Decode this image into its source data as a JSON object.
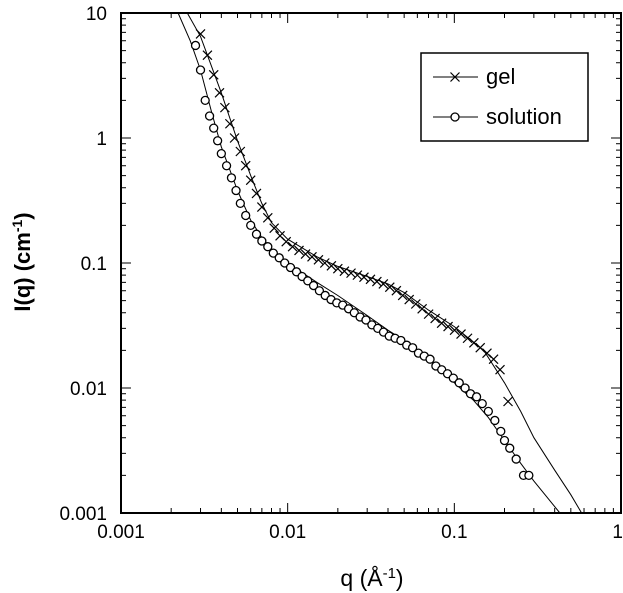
{
  "chart_data": {
    "type": "scatter",
    "xscale": "log",
    "yscale": "log",
    "xlim": [
      0.001,
      1
    ],
    "ylim": [
      0.001,
      10
    ],
    "xticks": [
      0.001,
      0.01,
      0.1,
      1
    ],
    "xtick_labels": [
      "0.001",
      "0.01",
      "0.1",
      "1"
    ],
    "yticks": [
      0.001,
      0.01,
      0.1,
      1,
      10
    ],
    "ytick_labels": [
      "0.001",
      "0.01",
      "0.1",
      "1",
      "10"
    ],
    "xlabel": {
      "text": "q  (Å",
      "sup": "-1",
      "close": ")"
    },
    "ylabel": {
      "text": "I(q)  (cm",
      "sup": "-1",
      "close": ")"
    },
    "grid": false,
    "legend_position": "top-right",
    "series": [
      {
        "name": "gel",
        "marker": "x",
        "points": [
          [
            0.003,
            6.8
          ],
          [
            0.0033,
            4.6
          ],
          [
            0.0036,
            3.2
          ],
          [
            0.0039,
            2.3
          ],
          [
            0.0042,
            1.75
          ],
          [
            0.0045,
            1.3
          ],
          [
            0.0048,
            1.0
          ],
          [
            0.0052,
            0.78
          ],
          [
            0.0056,
            0.6
          ],
          [
            0.006,
            0.46
          ],
          [
            0.0065,
            0.36
          ],
          [
            0.007,
            0.28
          ],
          [
            0.0076,
            0.23
          ],
          [
            0.0083,
            0.19
          ],
          [
            0.009,
            0.165
          ],
          [
            0.0098,
            0.148
          ],
          [
            0.0107,
            0.135
          ],
          [
            0.0117,
            0.126
          ],
          [
            0.0128,
            0.118
          ],
          [
            0.014,
            0.112
          ],
          [
            0.0153,
            0.106
          ],
          [
            0.0167,
            0.1
          ],
          [
            0.0183,
            0.095
          ],
          [
            0.02,
            0.09
          ],
          [
            0.0219,
            0.086
          ],
          [
            0.024,
            0.083
          ],
          [
            0.0262,
            0.08
          ],
          [
            0.0287,
            0.077
          ],
          [
            0.0314,
            0.074
          ],
          [
            0.0343,
            0.071
          ],
          [
            0.0375,
            0.068
          ],
          [
            0.041,
            0.064
          ],
          [
            0.0449,
            0.06
          ],
          [
            0.049,
            0.055
          ],
          [
            0.0536,
            0.051
          ],
          [
            0.0587,
            0.047
          ],
          [
            0.0641,
            0.043
          ],
          [
            0.0701,
            0.039
          ],
          [
            0.0767,
            0.036
          ],
          [
            0.0839,
            0.033
          ],
          [
            0.0917,
            0.031
          ],
          [
            0.1003,
            0.029
          ],
          [
            0.1097,
            0.027
          ],
          [
            0.12,
            0.025
          ],
          [
            0.131,
            0.023
          ],
          [
            0.143,
            0.021
          ],
          [
            0.157,
            0.019
          ],
          [
            0.172,
            0.017
          ],
          [
            0.188,
            0.014
          ],
          [
            0.21,
            0.0078
          ]
        ],
        "fit": [
          [
            0.0025,
            10
          ],
          [
            0.003,
            6.5
          ],
          [
            0.004,
            2.3
          ],
          [
            0.005,
            0.95
          ],
          [
            0.006,
            0.5
          ],
          [
            0.007,
            0.3
          ],
          [
            0.008,
            0.21
          ],
          [
            0.01,
            0.155
          ],
          [
            0.015,
            0.112
          ],
          [
            0.02,
            0.094
          ],
          [
            0.03,
            0.078
          ],
          [
            0.04,
            0.068
          ],
          [
            0.05,
            0.058
          ],
          [
            0.07,
            0.042
          ],
          [
            0.1,
            0.031
          ],
          [
            0.15,
            0.02
          ],
          [
            0.2,
            0.011
          ],
          [
            0.25,
            0.0065
          ],
          [
            0.3,
            0.004
          ],
          [
            0.4,
            0.0022
          ],
          [
            0.5,
            0.0014
          ],
          [
            0.58,
            0.001
          ]
        ]
      },
      {
        "name": "solution",
        "marker": "o",
        "points": [
          [
            0.0028,
            5.5
          ],
          [
            0.003,
            3.5
          ],
          [
            0.0032,
            2.0
          ],
          [
            0.0034,
            1.5
          ],
          [
            0.0036,
            1.2
          ],
          [
            0.0038,
            0.95
          ],
          [
            0.004,
            0.75
          ],
          [
            0.0043,
            0.6
          ],
          [
            0.0046,
            0.48
          ],
          [
            0.0049,
            0.38
          ],
          [
            0.0052,
            0.3
          ],
          [
            0.0056,
            0.24
          ],
          [
            0.006,
            0.2
          ],
          [
            0.0065,
            0.17
          ],
          [
            0.007,
            0.15
          ],
          [
            0.0076,
            0.135
          ],
          [
            0.0082,
            0.12
          ],
          [
            0.0089,
            0.11
          ],
          [
            0.0096,
            0.1
          ],
          [
            0.0104,
            0.092
          ],
          [
            0.0113,
            0.085
          ],
          [
            0.0122,
            0.078
          ],
          [
            0.0132,
            0.072
          ],
          [
            0.0143,
            0.066
          ],
          [
            0.0155,
            0.06
          ],
          [
            0.0168,
            0.055
          ],
          [
            0.0182,
            0.051
          ],
          [
            0.0197,
            0.048
          ],
          [
            0.0214,
            0.046
          ],
          [
            0.0232,
            0.043
          ],
          [
            0.0251,
            0.04
          ],
          [
            0.0272,
            0.037
          ],
          [
            0.0295,
            0.035
          ],
          [
            0.032,
            0.032
          ],
          [
            0.0347,
            0.03
          ],
          [
            0.0376,
            0.028
          ],
          [
            0.0407,
            0.026
          ],
          [
            0.0441,
            0.025
          ],
          [
            0.0478,
            0.024
          ],
          [
            0.0518,
            0.022
          ],
          [
            0.0562,
            0.021
          ],
          [
            0.0609,
            0.019
          ],
          [
            0.066,
            0.018
          ],
          [
            0.0715,
            0.017
          ],
          [
            0.0775,
            0.015
          ],
          [
            0.084,
            0.014
          ],
          [
            0.091,
            0.013
          ],
          [
            0.0986,
            0.012
          ],
          [
            0.107,
            0.011
          ],
          [
            0.116,
            0.01
          ],
          [
            0.125,
            0.009
          ],
          [
            0.136,
            0.0085
          ],
          [
            0.147,
            0.0075
          ],
          [
            0.16,
            0.0065
          ],
          [
            0.175,
            0.0055
          ],
          [
            0.19,
            0.0045
          ],
          [
            0.2,
            0.0038
          ],
          [
            0.215,
            0.0033
          ],
          [
            0.235,
            0.0027
          ],
          [
            0.26,
            0.002
          ],
          [
            0.28,
            0.002
          ]
        ],
        "fit": [
          [
            0.0022,
            10
          ],
          [
            0.0026,
            6
          ],
          [
            0.003,
            3.5
          ],
          [
            0.0035,
            1.6
          ],
          [
            0.004,
            0.85
          ],
          [
            0.005,
            0.38
          ],
          [
            0.006,
            0.22
          ],
          [
            0.007,
            0.16
          ],
          [
            0.008,
            0.13
          ],
          [
            0.01,
            0.1
          ],
          [
            0.015,
            0.07
          ],
          [
            0.02,
            0.055
          ],
          [
            0.03,
            0.038
          ],
          [
            0.04,
            0.029
          ],
          [
            0.05,
            0.024
          ],
          [
            0.07,
            0.017
          ],
          [
            0.1,
            0.011
          ],
          [
            0.13,
            0.008
          ],
          [
            0.16,
            0.0058
          ],
          [
            0.2,
            0.0038
          ],
          [
            0.25,
            0.0025
          ],
          [
            0.3,
            0.0018
          ],
          [
            0.35,
            0.0014
          ],
          [
            0.43,
            0.001
          ]
        ]
      }
    ]
  }
}
